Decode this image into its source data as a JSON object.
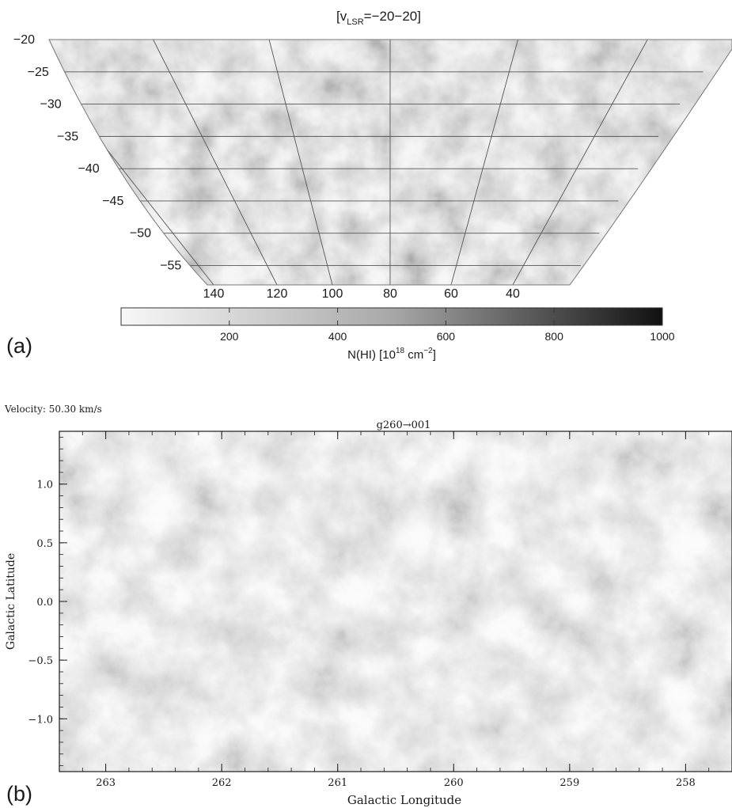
{
  "panel_a": {
    "label": "(a)",
    "title_main": "v",
    "title_sub": "LSR",
    "title_rest": "=−20−20",
    "title_open": "[",
    "title_close": "]"
  },
  "panel_b": {
    "label": "(b)",
    "velocity_text": "Velocity: 50.30 km/s",
    "title": "g260→001"
  },
  "colorbar": {
    "label_prefix": "N(HI) [10",
    "label_exp1": "18",
    "label_mid": " cm",
    "label_exp2": "−2",
    "label_suffix": "]"
  },
  "colors": {
    "ink": "#1a1a1a",
    "grid": "#555555",
    "map_light": "#e4e4e4",
    "map_dark": "#2a2a2a"
  },
  "chart_data": [
    {
      "type": "heatmap",
      "title": "[vLSR=−20−20]",
      "xlabel": "",
      "ylabel": "",
      "colorbar": {
        "range": [
          0,
          1000
        ],
        "ticks": [
          200,
          400,
          600,
          800,
          1000
        ],
        "tick_labels": [
          "200",
          "400",
          "600",
          "800",
          "1000"
        ],
        "label": "N(HI) [10^18 cm^-2]"
      },
      "x_ticks": [
        140,
        120,
        100,
        80,
        60,
        40
      ],
      "x_tick_labels": [
        "140",
        "120",
        "100",
        "80",
        "60",
        "40"
      ],
      "y_ticks": [
        -20,
        -25,
        -30,
        -35,
        -40,
        -45,
        -50,
        -55
      ],
      "y_tick_labels": [
        "−20",
        "−25",
        "−30",
        "−35",
        "−40",
        "−45",
        "−50",
        "−55"
      ],
      "projection": "curved galactic grid",
      "grid": true
    },
    {
      "type": "heatmap",
      "title": "g260→001",
      "xlabel": "Galactic Longitude",
      "ylabel": "Galactic Latitude",
      "x_ticks": [
        263,
        262,
        261,
        260,
        259,
        258
      ],
      "x_tick_labels": [
        "263",
        "262",
        "261",
        "260",
        "259",
        "258"
      ],
      "y_ticks": [
        1.0,
        0.5,
        0.0,
        -0.5,
        -1.0
      ],
      "y_tick_labels": [
        "1.0",
        "0.5",
        "0.0",
        "−0.5",
        "−1.0"
      ],
      "xlim": [
        263.4,
        257.6
      ],
      "ylim": [
        -1.45,
        1.45
      ],
      "grid": false
    }
  ]
}
